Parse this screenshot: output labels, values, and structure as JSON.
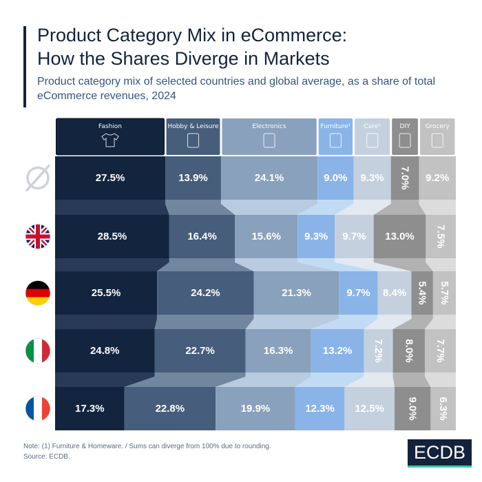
{
  "title_line1": "Product Category Mix in eCommerce:",
  "title_line2": "How the Shares Diverge in Markets",
  "subtitle": "Product category mix of selected countries and global average, as a share of total eCommerce revenues, 2024",
  "note": "Note: (1) Furniture & Homeware. / Sums can diverge from 100% due to rounding.",
  "source": "Source: ECDB.",
  "logo": "ECDB",
  "chart_data": {
    "type": "bar",
    "stacked": true,
    "orientation": "horizontal",
    "unit": "%",
    "categories": [
      "Global average",
      "United Kingdom",
      "Germany",
      "Italy",
      "France"
    ],
    "row_icons": [
      "average-symbol-icon",
      "uk-flag-icon",
      "germany-flag-icon",
      "italy-flag-icon",
      "france-flag-icon"
    ],
    "series": [
      {
        "name": "Fashion",
        "icon": "t-shirt-icon",
        "color": "#13243f",
        "values": [
          27.5,
          28.5,
          25.5,
          24.8,
          17.3
        ]
      },
      {
        "name": "Hobby & Leisure",
        "icon": "hobby-icon",
        "color": "#465d7b",
        "values": [
          13.9,
          16.4,
          24.2,
          22.7,
          22.8
        ]
      },
      {
        "name": "Electronics",
        "icon": "devices-icon",
        "color": "#89a1bc",
        "values": [
          24.1,
          15.6,
          21.3,
          16.3,
          19.9
        ]
      },
      {
        "name": "Furniture¹",
        "icon": "sofa-icon",
        "color": "#8ab4e8",
        "values": [
          9.0,
          9.3,
          9.7,
          13.2,
          12.3
        ]
      },
      {
        "name": "Care¹",
        "icon": "bottles-icon",
        "color": "#c5d0df",
        "values": [
          9.3,
          9.7,
          8.4,
          7.2,
          12.5
        ]
      },
      {
        "name": "DIY",
        "icon": "tools-icon",
        "color": "#8e8e8e",
        "values": [
          7.0,
          13.0,
          5.4,
          8.0,
          9.0
        ]
      },
      {
        "name": "Grocery",
        "icon": "grocery-bag-icon",
        "color": "#c2c2c2",
        "values": [
          9.2,
          7.5,
          5.7,
          7.7,
          6.3
        ]
      }
    ],
    "connector_colors": [
      "#283a56",
      "#71869f",
      "#b9cbe0",
      "#c2dbf5",
      "#e3e9f1",
      "#b2b2b2",
      "#dcdcdc"
    ]
  }
}
